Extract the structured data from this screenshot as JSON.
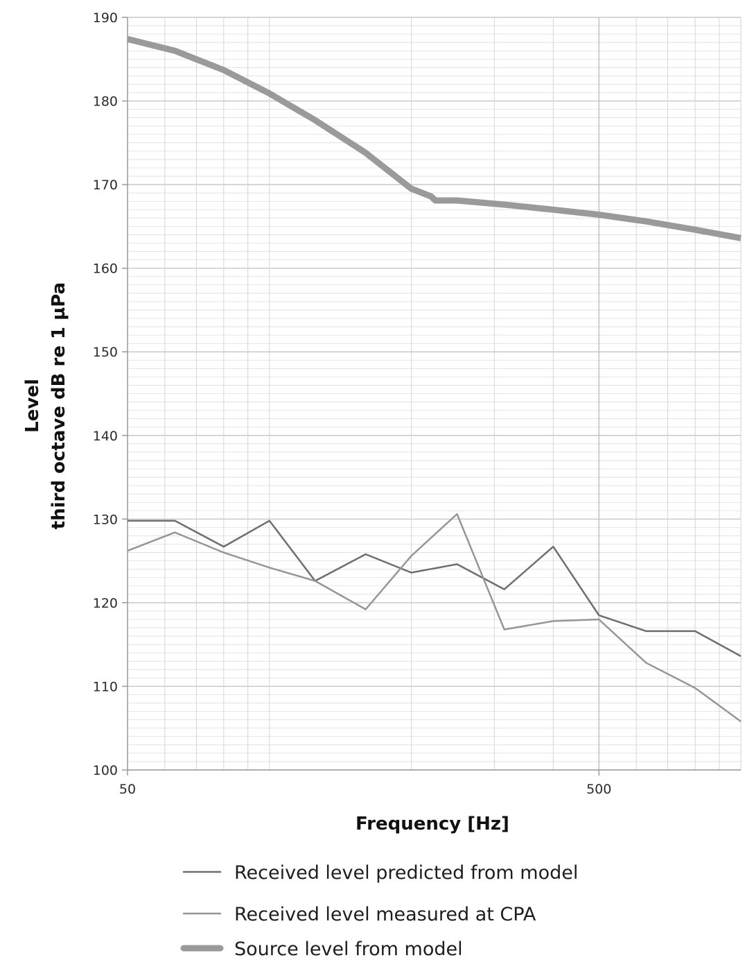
{
  "chart_data": {
    "type": "line",
    "xlabel": "Frequency [Hz]",
    "ylabel_lines": [
      "Level",
      "third octave dB  re 1 µPa"
    ],
    "x_scale": "log",
    "xlim": [
      50,
      1000
    ],
    "ylim": [
      100,
      190
    ],
    "x_ticks": [
      {
        "value": 50,
        "label": "50"
      },
      {
        "value": 500,
        "label": "500"
      }
    ],
    "y_ticks": [
      {
        "value": 100,
        "label": "100"
      },
      {
        "value": 110,
        "label": "110"
      },
      {
        "value": 120,
        "label": "120"
      },
      {
        "value": 130,
        "label": "130"
      },
      {
        "value": 140,
        "label": "140"
      },
      {
        "value": 150,
        "label": "150"
      },
      {
        "value": 160,
        "label": "160"
      },
      {
        "value": 170,
        "label": "170"
      },
      {
        "value": 180,
        "label": "180"
      },
      {
        "value": 190,
        "label": "190"
      }
    ],
    "grid": true,
    "legend_position": "bottom",
    "series": [
      {
        "name": "Received level predicted from model",
        "color": "#6e6e6e",
        "x": [
          50,
          63,
          80,
          100,
          125,
          160,
          200,
          250,
          315,
          400,
          500,
          630,
          800,
          1000
        ],
        "values": [
          129.8,
          129.8,
          126.7,
          129.8,
          122.6,
          125.8,
          123.6,
          124.6,
          121.6,
          126.7,
          118.5,
          116.6,
          116.6,
          113.6
        ]
      },
      {
        "name": "Received level measured at CPA",
        "color": "#969696",
        "x": [
          50,
          63,
          80,
          100,
          125,
          160,
          200,
          250,
          315,
          400,
          500,
          630,
          800,
          1000
        ],
        "values": [
          126.2,
          128.4,
          126.0,
          124.2,
          122.6,
          119.2,
          125.6,
          130.6,
          116.8,
          117.8,
          118.0,
          112.8,
          109.8,
          105.8
        ]
      },
      {
        "name": "Source level from model",
        "color": "#9a9a9a",
        "x": [
          50,
          63,
          80,
          100,
          125,
          160,
          200,
          220,
          225,
          250,
          315,
          400,
          500,
          630,
          800,
          1000
        ],
        "values": [
          187.4,
          186.0,
          183.7,
          180.9,
          177.7,
          173.8,
          169.5,
          168.6,
          168.1,
          168.1,
          167.6,
          167.0,
          166.4,
          165.6,
          164.6,
          163.6
        ]
      }
    ]
  }
}
